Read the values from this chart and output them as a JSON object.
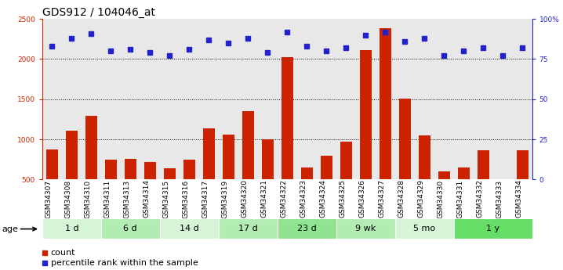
{
  "title": "GDS912 / 104046_at",
  "samples": [
    "GSM34307",
    "GSM34308",
    "GSM34310",
    "GSM34311",
    "GSM34313",
    "GSM34314",
    "GSM34315",
    "GSM34316",
    "GSM34317",
    "GSM34319",
    "GSM34320",
    "GSM34321",
    "GSM34322",
    "GSM34323",
    "GSM34324",
    "GSM34325",
    "GSM34326",
    "GSM34327",
    "GSM34328",
    "GSM34329",
    "GSM34330",
    "GSM34331",
    "GSM34332",
    "GSM34333",
    "GSM34334"
  ],
  "counts": [
    870,
    1110,
    1290,
    745,
    755,
    720,
    640,
    750,
    1140,
    1060,
    1350,
    1000,
    2020,
    650,
    800,
    970,
    2110,
    2380,
    1510,
    1050,
    600,
    650,
    860,
    500,
    860
  ],
  "percentile_ranks": [
    83,
    88,
    91,
    80,
    81,
    79,
    77,
    81,
    87,
    85,
    88,
    79,
    92,
    83,
    80,
    82,
    90,
    92,
    86,
    88,
    77,
    80,
    82,
    77,
    82
  ],
  "age_groups": [
    {
      "label": "1 d",
      "start": 0,
      "end": 3,
      "color": "#d6f5d6"
    },
    {
      "label": "6 d",
      "start": 3,
      "end": 6,
      "color": "#b3ecb3"
    },
    {
      "label": "14 d",
      "start": 6,
      "end": 9,
      "color": "#d6f5d6"
    },
    {
      "label": "17 d",
      "start": 9,
      "end": 12,
      "color": "#b3ecb3"
    },
    {
      "label": "23 d",
      "start": 12,
      "end": 15,
      "color": "#90e390"
    },
    {
      "label": "9 wk",
      "start": 15,
      "end": 18,
      "color": "#b3ecb3"
    },
    {
      "label": "5 mo",
      "start": 18,
      "end": 21,
      "color": "#d6f5d6"
    },
    {
      "label": "1 y",
      "start": 21,
      "end": 25,
      "color": "#66dd66"
    }
  ],
  "ylim_left": [
    500,
    2500
  ],
  "ylim_right": [
    0,
    100
  ],
  "yticks_left": [
    500,
    1000,
    1500,
    2000,
    2500
  ],
  "yticks_right": [
    0,
    25,
    50,
    75,
    100
  ],
  "hlines": [
    1000,
    1500,
    2000
  ],
  "bar_color": "#cc2200",
  "dot_color": "#2222cc",
  "bg_color": "#ffffff",
  "plot_bg": "#e8e8e8",
  "title_fontsize": 10,
  "tick_fontsize": 6.5,
  "age_fontsize": 8,
  "legend_fontsize": 8
}
